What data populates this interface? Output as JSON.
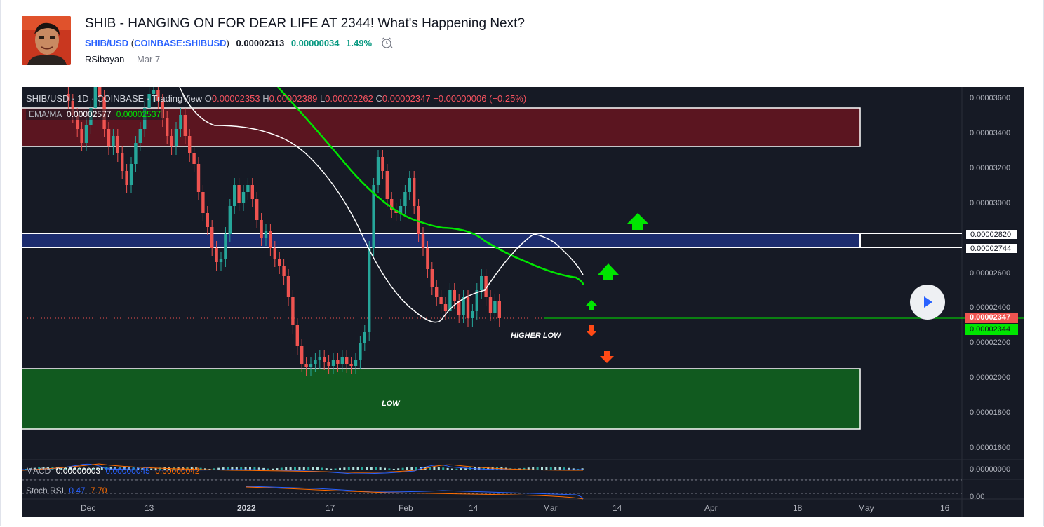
{
  "post": {
    "title": "SHIB - HANGING ON FOR DEAR LIFE AT 2344! What's Happening Next?",
    "symbol": "SHIB/USD",
    "exchange_open": " (",
    "exchange": "COINBASE:SHIBUSD",
    "exchange_close": ")",
    "price": "0.00002313",
    "change": "0.00000034",
    "change_pct": "1.49%",
    "author": "RSibayan",
    "date": "Mar 7"
  },
  "chart": {
    "header": "SHIB/USD · 1D · COINBASE · TradingView",
    "o_label": "O",
    "o_value": "0.00002353",
    "h_label": "H",
    "h_value": "0.00002389",
    "l_label": "L",
    "l_value": "0.00002262",
    "c_label": "C",
    "c_value": "0.00002347",
    "chg_value": "−0.00000006 (−0.25%)",
    "ema_label": "EMA/MA",
    "ema_value": "0.00002577",
    "ma_value": "0.00002537",
    "macd_label": "MACD",
    "macd_v1": "0.00000003",
    "macd_v2": "0.00000045",
    "macd_v3": "0.00000042",
    "stoch_label": "Stoch RSI",
    "stoch_v1": "0.47",
    "stoch_v2": "7.70",
    "price_axis": [
      "0.00003600",
      "0.00003400",
      "0.00003200",
      "0.00003000",
      "0.00002600",
      "0.00002400",
      "0.00002200",
      "0.00002000",
      "0.00001800",
      "0.00001600"
    ],
    "macd_axis": "0.00000000",
    "stoch_axis": "0.00",
    "tag_resistance_top": "0.00002820",
    "tag_resistance_bottom": "0.00002744",
    "tag_close": "0.00002347",
    "tag_ma": "0.00002344",
    "time_axis": [
      "Dec",
      "13",
      "2022",
      "17",
      "Feb",
      "14",
      "Mar",
      "14",
      "Apr",
      "18",
      "May",
      "16"
    ],
    "annot_higher_low": "HIGHER LOW",
    "annot_low": "LOW",
    "colors": {
      "background": "#161a25",
      "up": "#26a69a",
      "down": "#ef5350",
      "ema": "#00e600",
      "ma": "#ffffff",
      "supply_zone": "#5b1520",
      "resistance_zone": "#1c2c6e",
      "demand_zone": "#115a1f",
      "arrow_up": "#00e600",
      "arrow_down": "#ff4a16"
    }
  }
}
